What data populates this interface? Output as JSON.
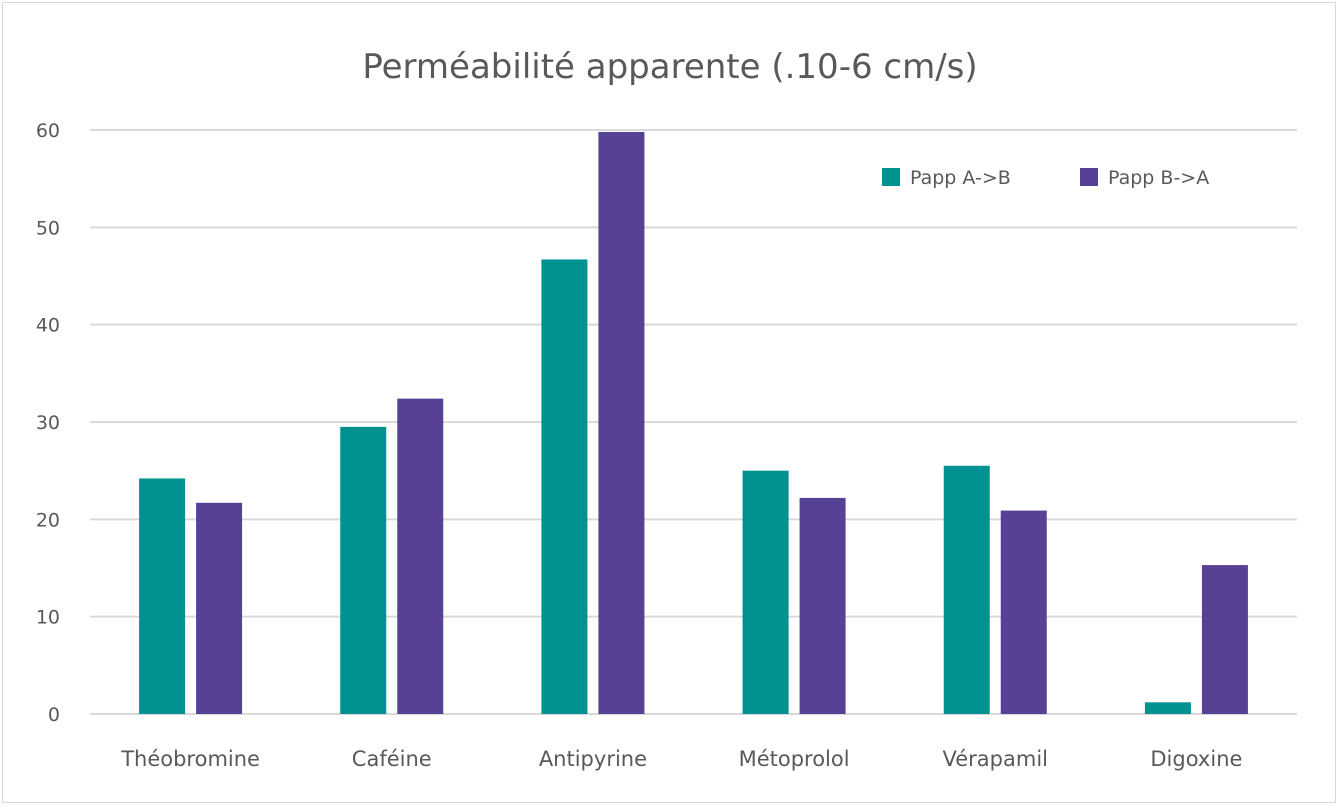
{
  "chart_data": {
    "type": "bar",
    "title": "Perméabilité apparente (.10-6 cm/s)",
    "xlabel": "",
    "ylabel": "",
    "categories": [
      "Théobromine",
      "Caféine",
      "Antipyrine",
      "Métoprolol",
      "Vérapamil",
      "Digoxine"
    ],
    "series": [
      {
        "name": "Papp A->B",
        "color": "#009191",
        "values": [
          24.2,
          29.5,
          46.7,
          25.0,
          25.5,
          1.2
        ]
      },
      {
        "name": "Papp B->A",
        "color": "#574195",
        "values": [
          21.7,
          32.4,
          59.8,
          22.2,
          20.9,
          15.3
        ]
      }
    ],
    "ylim": [
      0,
      60
    ],
    "yticks": [
      0,
      10,
      20,
      30,
      40,
      50,
      60
    ],
    "grid": true,
    "legend_position": "top-right"
  }
}
